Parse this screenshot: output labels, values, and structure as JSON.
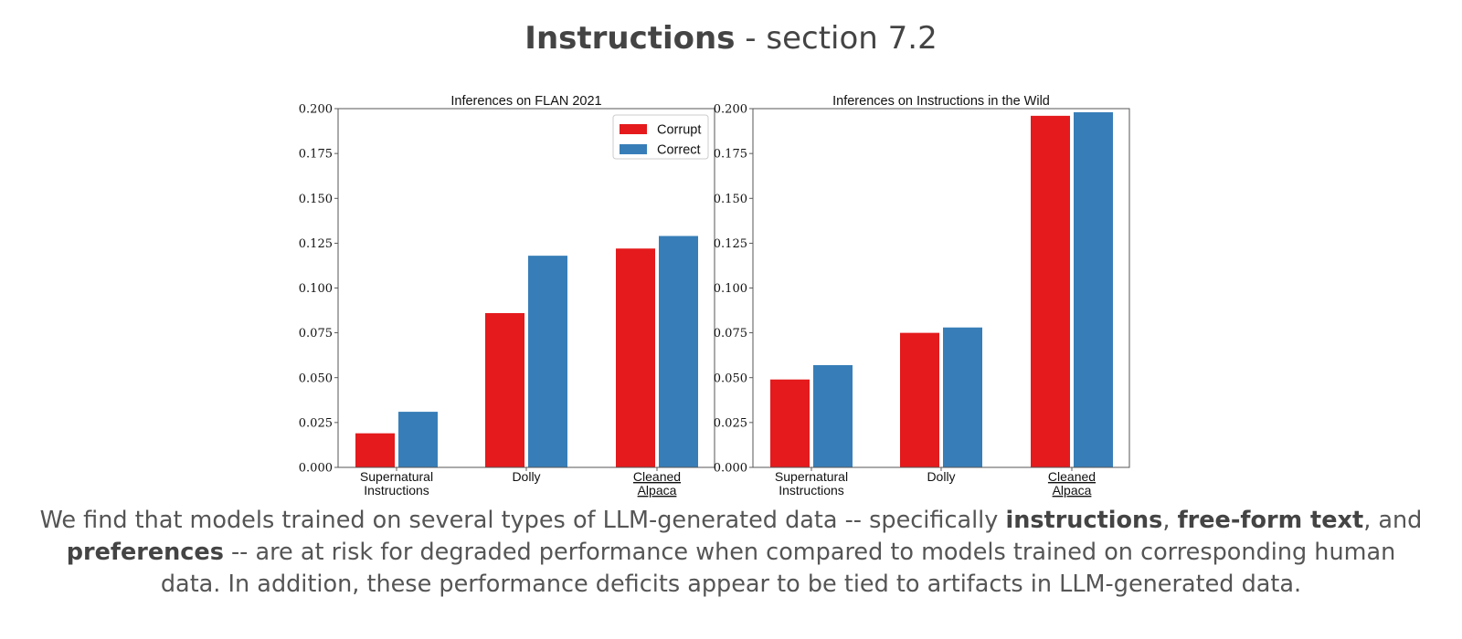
{
  "header": {
    "title_bold": "Instructions",
    "title_rest": " - section 7.2"
  },
  "caption": {
    "seg1": "We find that models trained on several types of LLM-generated data -- specifically ",
    "b1": "instructions",
    "seg2": ", ",
    "b2": "free-form text",
    "seg3": ", and ",
    "b3": "preferences",
    "seg4": " -- are at risk for degraded performance when compared to models trained on corresponding human data. In addition, these performance deficits appear to be tied to artifacts in LLM-generated data."
  },
  "colors": {
    "corrupt": "#e41a1c",
    "correct": "#377eb8"
  },
  "chart_data": [
    {
      "type": "bar",
      "title": "Inferences on FLAN 2021",
      "categories": [
        [
          "Supernatural",
          "Instructions"
        ],
        [
          "Dolly"
        ],
        [
          "Cleaned",
          "Alpaca"
        ]
      ],
      "underlined_categories": [
        2
      ],
      "series": [
        {
          "name": "Corrupt",
          "values": [
            0.019,
            0.086,
            0.122
          ]
        },
        {
          "name": "Correct",
          "values": [
            0.031,
            0.118,
            0.129
          ]
        }
      ],
      "ylim": [
        0,
        0.2
      ],
      "yticks": [
        "0.000",
        "0.025",
        "0.050",
        "0.075",
        "0.100",
        "0.125",
        "0.150",
        "0.175",
        "0.200"
      ],
      "legend": "top-right",
      "grid": false
    },
    {
      "type": "bar",
      "title": "Inferences on Instructions in the Wild",
      "categories": [
        [
          "Supernatural",
          "Instructions"
        ],
        [
          "Dolly"
        ],
        [
          "Cleaned",
          "Alpaca"
        ]
      ],
      "underlined_categories": [
        2
      ],
      "series": [
        {
          "name": "Corrupt",
          "values": [
            0.049,
            0.075,
            0.196
          ]
        },
        {
          "name": "Correct",
          "values": [
            0.057,
            0.078,
            0.198
          ]
        }
      ],
      "ylim": [
        0,
        0.2
      ],
      "yticks": [
        "0.000",
        "0.025",
        "0.050",
        "0.075",
        "0.100",
        "0.125",
        "0.150",
        "0.175",
        "0.200"
      ],
      "legend": "none",
      "grid": false
    }
  ]
}
